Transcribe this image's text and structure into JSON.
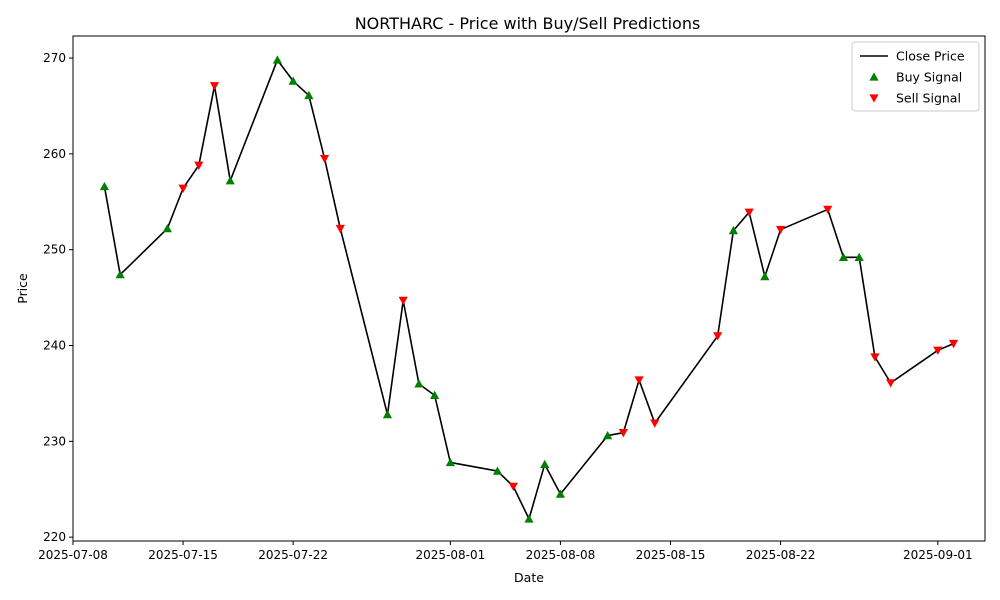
{
  "chart_data": {
    "type": "line",
    "title": "NORTHARC - Price with Buy/Sell Predictions",
    "xlabel": "Date",
    "ylabel": "Price",
    "xlim": [
      "2025-07-08",
      "2025-09-04"
    ],
    "ylim": [
      219.6,
      272.3
    ],
    "x_ticks": [
      "2025-07-08",
      "2025-07-15",
      "2025-07-22",
      "2025-08-01",
      "2025-08-08",
      "2025-08-15",
      "2025-08-22",
      "2025-09-01"
    ],
    "y_ticks": [
      220,
      230,
      240,
      250,
      260,
      270
    ],
    "grid": false,
    "legend_position": "top-right",
    "series": [
      {
        "name": "Close Price",
        "type": "line",
        "color": "#000000",
        "points": [
          {
            "x": "2025-07-10",
            "y": 256.6
          },
          {
            "x": "2025-07-11",
            "y": 247.4
          },
          {
            "x": "2025-07-14",
            "y": 252.2
          },
          {
            "x": "2025-07-15",
            "y": 256.4
          },
          {
            "x": "2025-07-16",
            "y": 258.8
          },
          {
            "x": "2025-07-17",
            "y": 267.1
          },
          {
            "x": "2025-07-18",
            "y": 257.2
          },
          {
            "x": "2025-07-21",
            "y": 269.8
          },
          {
            "x": "2025-07-22",
            "y": 267.6
          },
          {
            "x": "2025-07-23",
            "y": 266.1
          },
          {
            "x": "2025-07-24",
            "y": 259.5
          },
          {
            "x": "2025-07-25",
            "y": 252.2
          },
          {
            "x": "2025-07-28",
            "y": 232.8
          },
          {
            "x": "2025-07-29",
            "y": 244.7
          },
          {
            "x": "2025-07-30",
            "y": 236.0
          },
          {
            "x": "2025-07-31",
            "y": 234.8
          },
          {
            "x": "2025-08-01",
            "y": 227.8
          },
          {
            "x": "2025-08-04",
            "y": 226.9
          },
          {
            "x": "2025-08-05",
            "y": 225.3
          },
          {
            "x": "2025-08-06",
            "y": 221.9
          },
          {
            "x": "2025-08-07",
            "y": 227.6
          },
          {
            "x": "2025-08-08",
            "y": 224.5
          },
          {
            "x": "2025-08-11",
            "y": 230.6
          },
          {
            "x": "2025-08-12",
            "y": 230.9
          },
          {
            "x": "2025-08-13",
            "y": 236.4
          },
          {
            "x": "2025-08-14",
            "y": 231.9
          },
          {
            "x": "2025-08-18",
            "y": 241.0
          },
          {
            "x": "2025-08-19",
            "y": 252.0
          },
          {
            "x": "2025-08-20",
            "y": 253.9
          },
          {
            "x": "2025-08-21",
            "y": 247.2
          },
          {
            "x": "2025-08-22",
            "y": 252.1
          },
          {
            "x": "2025-08-25",
            "y": 254.2
          },
          {
            "x": "2025-08-26",
            "y": 249.2
          },
          {
            "x": "2025-08-27",
            "y": 249.2
          },
          {
            "x": "2025-08-28",
            "y": 238.8
          },
          {
            "x": "2025-08-29",
            "y": 236.1
          },
          {
            "x": "2025-09-01",
            "y": 239.5
          },
          {
            "x": "2025-09-02",
            "y": 240.2
          }
        ]
      },
      {
        "name": "Buy Signal",
        "type": "scatter",
        "marker": "triangle-up",
        "color": "#008000",
        "points": [
          {
            "x": "2025-07-10",
            "y": 256.6
          },
          {
            "x": "2025-07-11",
            "y": 247.4
          },
          {
            "x": "2025-07-14",
            "y": 252.2
          },
          {
            "x": "2025-07-18",
            "y": 257.2
          },
          {
            "x": "2025-07-21",
            "y": 269.8
          },
          {
            "x": "2025-07-22",
            "y": 267.6
          },
          {
            "x": "2025-07-23",
            "y": 266.1
          },
          {
            "x": "2025-07-28",
            "y": 232.8
          },
          {
            "x": "2025-07-30",
            "y": 236.0
          },
          {
            "x": "2025-07-31",
            "y": 234.8
          },
          {
            "x": "2025-08-01",
            "y": 227.8
          },
          {
            "x": "2025-08-04",
            "y": 226.9
          },
          {
            "x": "2025-08-06",
            "y": 221.9
          },
          {
            "x": "2025-08-07",
            "y": 227.6
          },
          {
            "x": "2025-08-08",
            "y": 224.5
          },
          {
            "x": "2025-08-11",
            "y": 230.6
          },
          {
            "x": "2025-08-19",
            "y": 252.0
          },
          {
            "x": "2025-08-21",
            "y": 247.2
          },
          {
            "x": "2025-08-26",
            "y": 249.2
          },
          {
            "x": "2025-08-27",
            "y": 249.2
          }
        ]
      },
      {
        "name": "Sell Signal",
        "type": "scatter",
        "marker": "triangle-down",
        "color": "#ff0000",
        "points": [
          {
            "x": "2025-07-15",
            "y": 256.4
          },
          {
            "x": "2025-07-16",
            "y": 258.8
          },
          {
            "x": "2025-07-17",
            "y": 267.1
          },
          {
            "x": "2025-07-24",
            "y": 259.5
          },
          {
            "x": "2025-07-25",
            "y": 252.2
          },
          {
            "x": "2025-07-29",
            "y": 244.7
          },
          {
            "x": "2025-08-05",
            "y": 225.3
          },
          {
            "x": "2025-08-12",
            "y": 230.9
          },
          {
            "x": "2025-08-13",
            "y": 236.4
          },
          {
            "x": "2025-08-14",
            "y": 231.9
          },
          {
            "x": "2025-08-18",
            "y": 241.0
          },
          {
            "x": "2025-08-20",
            "y": 253.9
          },
          {
            "x": "2025-08-22",
            "y": 252.1
          },
          {
            "x": "2025-08-25",
            "y": 254.2
          },
          {
            "x": "2025-08-28",
            "y": 238.8
          },
          {
            "x": "2025-08-29",
            "y": 236.1
          },
          {
            "x": "2025-09-01",
            "y": 239.5
          },
          {
            "x": "2025-09-02",
            "y": 240.2
          }
        ]
      }
    ]
  }
}
